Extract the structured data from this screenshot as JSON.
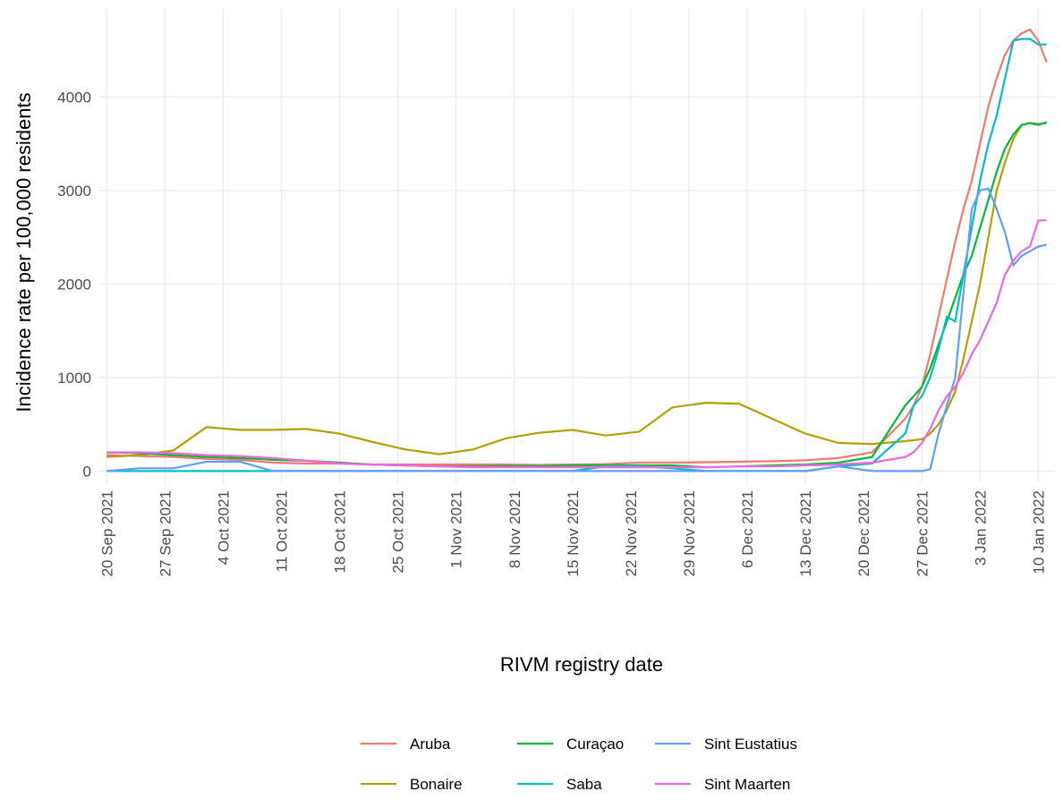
{
  "chart_data": {
    "type": "line",
    "x_label": "RIVM registry date",
    "y_label": "Incidence rate per 100,000 residents",
    "x": [
      "2021-09-20",
      "2021-09-24",
      "2021-09-28",
      "2021-10-02",
      "2021-10-06",
      "2021-10-10",
      "2021-10-14",
      "2021-10-18",
      "2021-10-22",
      "2021-10-26",
      "2021-10-30",
      "2021-11-03",
      "2021-11-07",
      "2021-11-11",
      "2021-11-15",
      "2021-11-19",
      "2021-11-23",
      "2021-11-27",
      "2021-12-01",
      "2021-12-05",
      "2021-12-09",
      "2021-12-13",
      "2021-12-17",
      "2021-12-21",
      "2021-12-25",
      "2021-12-26",
      "2021-12-27",
      "2021-12-28",
      "2021-12-29",
      "2021-12-30",
      "2021-12-31",
      "2022-01-01",
      "2022-01-02",
      "2022-01-03",
      "2022-01-04",
      "2022-01-05",
      "2022-01-06",
      "2022-01-07",
      "2022-01-08",
      "2022-01-09",
      "2022-01-10",
      "2022-01-11"
    ],
    "series": [
      {
        "name": "Aruba",
        "color": "#F8766D",
        "values": [
          170,
          160,
          150,
          130,
          120,
          90,
          80,
          80,
          70,
          70,
          70,
          70,
          70,
          65,
          70,
          75,
          90,
          90,
          95,
          100,
          105,
          115,
          140,
          200,
          560,
          700,
          900,
          1250,
          1650,
          2050,
          2450,
          2800,
          3100,
          3500,
          3900,
          4200,
          4450,
          4600,
          4680,
          4720,
          4600,
          4370
        ]
      },
      {
        "name": "Bonaire",
        "color": "#B79F00",
        "values": [
          150,
          170,
          220,
          470,
          440,
          440,
          450,
          400,
          310,
          230,
          180,
          230,
          350,
          410,
          440,
          380,
          420,
          680,
          730,
          720,
          560,
          400,
          300,
          290,
          320,
          330,
          340,
          400,
          500,
          650,
          850,
          1200,
          1600,
          2000,
          2500,
          3000,
          3300,
          3550,
          3700,
          3720,
          3710,
          3720
        ]
      },
      {
        "name": "Curaçao",
        "color": "#00BA38",
        "values": [
          200,
          190,
          170,
          150,
          140,
          120,
          110,
          90,
          70,
          60,
          50,
          50,
          55,
          55,
          60,
          60,
          60,
          60,
          40,
          50,
          60,
          70,
          90,
          150,
          700,
          800,
          900,
          1100,
          1350,
          1600,
          1850,
          2100,
          2300,
          2600,
          2900,
          3200,
          3450,
          3600,
          3700,
          3720,
          3700,
          3730
        ]
      },
      {
        "name": "Saba",
        "color": "#00BFC4",
        "values": [
          0,
          0,
          0,
          0,
          0,
          0,
          0,
          0,
          0,
          0,
          0,
          0,
          0,
          0,
          0,
          50,
          50,
          30,
          0,
          0,
          0,
          0,
          50,
          80,
          400,
          700,
          800,
          1000,
          1300,
          1650,
          1600,
          2100,
          2600,
          3100,
          3500,
          3800,
          4200,
          4600,
          4620,
          4620,
          4560,
          4560
        ]
      },
      {
        "name": "Sint Eustatius",
        "color": "#619CFF",
        "values": [
          0,
          30,
          30,
          100,
          100,
          0,
          0,
          0,
          0,
          0,
          0,
          0,
          0,
          0,
          0,
          0,
          0,
          0,
          0,
          0,
          0,
          0,
          50,
          0,
          0,
          0,
          0,
          20,
          400,
          700,
          1000,
          1900,
          2800,
          3000,
          3020,
          2800,
          2550,
          2200,
          2300,
          2350,
          2400,
          2420
        ]
      },
      {
        "name": "Sint Maarten",
        "color": "#F564E3",
        "values": [
          200,
          200,
          190,
          170,
          160,
          140,
          110,
          80,
          70,
          60,
          50,
          40,
          40,
          40,
          40,
          40,
          40,
          40,
          40,
          50,
          50,
          60,
          70,
          90,
          150,
          200,
          300,
          450,
          650,
          800,
          900,
          1050,
          1250,
          1400,
          1600,
          1800,
          2100,
          2250,
          2350,
          2400,
          2680,
          2680
        ]
      }
    ],
    "xlim": [
      "2021-09-19",
      "2022-01-12"
    ],
    "xticks": [
      {
        "value": "2021-09-20",
        "label": "20 Sep 2021"
      },
      {
        "value": "2021-09-27",
        "label": "27 Sep 2021"
      },
      {
        "value": "2021-10-04",
        "label": "4 Oct 2021"
      },
      {
        "value": "2021-10-11",
        "label": "11 Oct 2021"
      },
      {
        "value": "2021-10-18",
        "label": "18 Oct 2021"
      },
      {
        "value": "2021-10-25",
        "label": "25 Oct 2021"
      },
      {
        "value": "2021-11-01",
        "label": "1 Nov 2021"
      },
      {
        "value": "2021-11-08",
        "label": "8 Nov 2021"
      },
      {
        "value": "2021-11-15",
        "label": "15 Nov 2021"
      },
      {
        "value": "2021-11-22",
        "label": "22 Nov 2021"
      },
      {
        "value": "2021-11-29",
        "label": "29 Nov 2021"
      },
      {
        "value": "2021-12-06",
        "label": "6 Dec 2021"
      },
      {
        "value": "2021-12-13",
        "label": "13 Dec 2021"
      },
      {
        "value": "2021-12-20",
        "label": "20 Dec 2021"
      },
      {
        "value": "2021-12-27",
        "label": "27 Dec 2021"
      },
      {
        "value": "2022-01-03",
        "label": "3 Jan 2022"
      },
      {
        "value": "2022-01-10",
        "label": "10 Jan 2022"
      }
    ],
    "ylim": [
      -130,
      4940
    ],
    "yticks": [
      0,
      1000,
      2000,
      3000,
      4000
    ],
    "grid": true,
    "legend": "bottom"
  }
}
